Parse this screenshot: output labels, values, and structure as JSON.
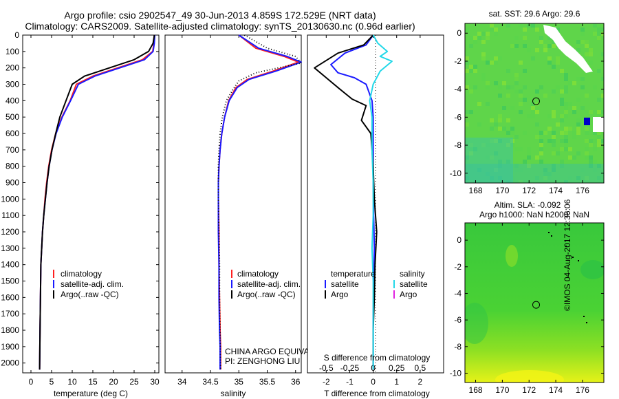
{
  "title": {
    "line1": "Argo profile: csio 2902547_49 30-Jun-2013 4.859S 172.529E (NRT data)",
    "line2": "Climatology: CARS2009. Satellite-adjusted climatology: synTS_20130630.nc (0.96d earlier)"
  },
  "timestamp": "©IMOS 04-Aug-2017 12:36:06",
  "colors": {
    "climatology": "#ff2020",
    "satellite": "#1a1aff",
    "argo": "#000000",
    "salinity_sat": "#22d8e8",
    "salinity_argo": "#e020e0"
  },
  "chart_data": [
    {
      "type": "line",
      "name": "temperature-profile",
      "xlabel": "temperature (deg C)",
      "ylabel": "",
      "xlim": [
        -2,
        31
      ],
      "ylim": [
        2060,
        0
      ],
      "xticks": [
        "0",
        "5",
        "10",
        "15",
        "20",
        "25",
        "30"
      ],
      "xtick_values": [
        0,
        5,
        10,
        15,
        20,
        25,
        30
      ],
      "yticks": [
        "0",
        "100",
        "200",
        "300",
        "400",
        "500",
        "600",
        "700",
        "800",
        "900",
        "1000",
        "1100",
        "1200",
        "1300",
        "1400",
        "1500",
        "1600",
        "1700",
        "1800",
        "1900",
        "2000"
      ],
      "ytick_values": [
        0,
        100,
        200,
        300,
        400,
        500,
        600,
        700,
        800,
        900,
        1000,
        1100,
        1200,
        1300,
        1400,
        1500,
        1600,
        1700,
        1800,
        1900,
        2000
      ],
      "legend": [
        "climatology",
        "satellite-adj. clim.",
        "Argo(..raw -QC)"
      ],
      "series": [
        {
          "name": "climatology",
          "color": "#ff2020",
          "x": [
            29.9,
            29.8,
            29.5,
            27,
            21,
            15,
            11,
            9.5,
            7.5,
            6,
            5,
            4.3,
            3.8,
            3.4,
            3.1,
            2.8,
            2.6,
            2.4,
            2.3,
            2.2,
            2.1
          ],
          "y": [
            0,
            50,
            100,
            150,
            200,
            250,
            300,
            400,
            500,
            600,
            700,
            800,
            900,
            1000,
            1100,
            1200,
            1300,
            1400,
            1600,
            1800,
            2040
          ]
        },
        {
          "name": "satellite-adj. clim.",
          "color": "#1a1aff",
          "x": [
            30.0,
            29.9,
            29.6,
            27.5,
            21.5,
            15.5,
            11.5,
            9.6,
            7.6,
            6.1,
            5.1,
            4.4,
            3.9,
            3.5,
            3.1,
            2.8,
            2.6,
            2.4,
            2.3,
            2.2,
            2.1
          ],
          "y": [
            0,
            50,
            100,
            150,
            200,
            250,
            300,
            400,
            500,
            600,
            700,
            800,
            900,
            1000,
            1100,
            1200,
            1300,
            1400,
            1600,
            1800,
            2040
          ]
        },
        {
          "name": "Argo(..raw -QC)",
          "color": "#000000",
          "x": [
            29.9,
            29.6,
            28.5,
            25,
            19,
            13,
            10,
            8.5,
            7,
            6,
            5.1,
            4.4,
            3.9,
            3.5,
            3.1,
            2.8,
            2.6,
            2.4,
            2.3,
            2.2,
            2.1
          ],
          "y": [
            0,
            50,
            100,
            150,
            200,
            250,
            300,
            400,
            500,
            600,
            700,
            800,
            900,
            1000,
            1100,
            1200,
            1300,
            1400,
            1600,
            1800,
            2040
          ]
        }
      ]
    },
    {
      "type": "line",
      "name": "salinity-profile",
      "xlabel": "salinity",
      "xlim": [
        33.7,
        36.1
      ],
      "ylim": [
        2060,
        0
      ],
      "xticks": [
        "34",
        "34.5",
        "35",
        "35.5",
        "36"
      ],
      "xtick_values": [
        34,
        34.5,
        35,
        35.5,
        36
      ],
      "legend": [
        "climatology",
        "satellite-adj. clim.",
        "Argo(..raw -QC)"
      ],
      "annotation": [
        "CHINA ARGO EQUIVALENT",
        "PI: ZENGHONG LIU"
      ],
      "series": [
        {
          "name": "climatology",
          "color": "#ff2020",
          "x": [
            35.0,
            35.3,
            35.8,
            36.05,
            35.6,
            35.15,
            34.95,
            34.82,
            34.75,
            34.7,
            34.67,
            34.65,
            34.64,
            34.64,
            34.65,
            34.65,
            34.66,
            34.67,
            34.68,
            34.68
          ],
          "y": [
            0,
            80,
            130,
            165,
            220,
            270,
            320,
            400,
            500,
            600,
            700,
            800,
            900,
            1000,
            1200,
            1400,
            1600,
            1800,
            1900,
            2040
          ]
        },
        {
          "name": "satellite-adj. clim.",
          "color": "#1a1aff",
          "x": [
            35.0,
            35.35,
            35.85,
            36.1,
            35.65,
            35.18,
            34.97,
            34.83,
            34.75,
            34.7,
            34.67,
            34.65,
            34.64,
            34.64,
            34.64,
            34.65,
            34.65,
            34.66,
            34.67,
            34.67
          ],
          "y": [
            0,
            80,
            130,
            165,
            220,
            270,
            320,
            400,
            500,
            600,
            700,
            800,
            900,
            1000,
            1200,
            1400,
            1600,
            1800,
            1900,
            2040
          ]
        },
        {
          "name": "Argo(..raw -QC)",
          "color": "#000000",
          "dotted": true,
          "x": [
            35.1,
            35.5,
            36.0,
            36.1,
            35.3,
            35.0,
            34.9,
            34.78,
            34.71,
            34.67,
            34.65,
            34.64,
            34.64,
            34.64,
            34.65,
            34.66,
            34.66,
            34.67,
            34.68
          ],
          "y": [
            0,
            80,
            130,
            170,
            230,
            280,
            330,
            400,
            500,
            600,
            700,
            800,
            900,
            1000,
            1200,
            1400,
            1600,
            1800,
            2040
          ]
        }
      ]
    },
    {
      "type": "line",
      "name": "difference-profile",
      "xlabel": "T difference from climatology",
      "xlabel_top": "S difference from climatology",
      "xlim": [
        -2.8,
        3.0
      ],
      "ylim": [
        2060,
        0
      ],
      "xticks": [
        "-2",
        "-1",
        "0",
        "1",
        "2"
      ],
      "xtick_values": [
        -2,
        -1,
        0,
        1,
        2
      ],
      "sticks": [
        "-0.5",
        "-0.25",
        "0",
        "0.25",
        "0.5"
      ],
      "stick_values": [
        -2,
        -1,
        0,
        1,
        2
      ],
      "legend_left_title": "temperature",
      "legend_right_title": "salinity",
      "legend_left": [
        "satellite",
        "Argo"
      ],
      "legend_right": [
        "satellite",
        "Argo"
      ],
      "series": [
        {
          "name": "T satellite",
          "color": "#1a1aff",
          "x": [
            0,
            -0.3,
            -1.2,
            -1.8,
            -1.5,
            -0.8,
            -0.3,
            -0.05,
            0.0,
            0.0,
            0.0,
            0.02,
            0.05,
            0.02,
            0.0,
            0.0,
            0.0
          ],
          "y": [
            0,
            60,
            110,
            180,
            230,
            260,
            300,
            400,
            500,
            700,
            900,
            1100,
            1300,
            1500,
            1700,
            1900,
            2040
          ]
        },
        {
          "name": "T Argo",
          "color": "#000000",
          "x": [
            0,
            -0.4,
            -1.5,
            -2.5,
            -2.0,
            -1.5,
            -0.9,
            -0.3,
            -0.5,
            -0.1,
            0.0,
            0.05,
            0.15,
            0.08,
            0.05,
            0.0,
            0.0
          ],
          "y": [
            0,
            60,
            110,
            200,
            260,
            320,
            390,
            430,
            520,
            600,
            800,
            1000,
            1200,
            1400,
            1600,
            1800,
            2040
          ]
        },
        {
          "name": "S satellite",
          "color": "#22d8e8",
          "x": [
            0,
            0.2,
            0.6,
            0.3,
            0.8,
            0.3,
            0.0,
            -0.15,
            -0.05,
            -0.05,
            0.0,
            0.0,
            -0.05,
            0.0,
            0.0,
            0.0
          ],
          "y": [
            0,
            50,
            100,
            130,
            160,
            220,
            300,
            400,
            500,
            700,
            900,
            1100,
            1300,
            1500,
            1800,
            2040
          ]
        }
      ]
    },
    {
      "type": "heatmap",
      "name": "sst-map",
      "title": "sat. SST: 29.6  Argo: 29.6",
      "xlim": [
        167.2,
        177.6
      ],
      "ylim": [
        -10.7,
        0.7
      ],
      "xticks": [
        "168",
        "170",
        "172",
        "174",
        "176"
      ],
      "xtick_values": [
        168,
        170,
        172,
        174,
        176
      ],
      "yticks": [
        "0",
        "-2",
        "-4",
        "-6",
        "-8",
        "-10"
      ],
      "ytick_values": [
        0,
        -2,
        -4,
        -6,
        -8,
        -10
      ],
      "profile_location": {
        "lon": 172.529,
        "lat": -4.859
      }
    },
    {
      "type": "heatmap",
      "name": "sla-map",
      "title": [
        "Altim. SLA: -0.092",
        "Argo h1000: NaN h2000: NaN"
      ],
      "xlim": [
        167.2,
        177.6
      ],
      "ylim": [
        -10.7,
        1.3
      ],
      "xticks": [
        "168",
        "170",
        "172",
        "174",
        "176"
      ],
      "xtick_values": [
        168,
        170,
        172,
        174,
        176
      ],
      "yticks": [
        "0",
        "-2",
        "-4",
        "-6",
        "-8",
        "-10"
      ],
      "ytick_values": [
        0,
        -2,
        -4,
        -6,
        -8,
        -10
      ],
      "profile_location": {
        "lon": 172.529,
        "lat": -4.859
      }
    }
  ]
}
